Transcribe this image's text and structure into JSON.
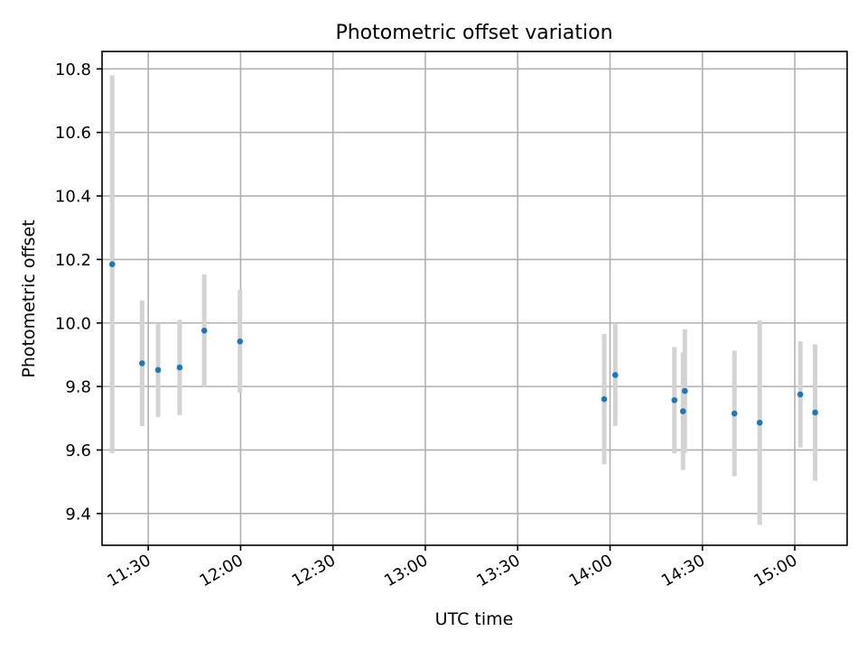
{
  "chart_data": {
    "type": "scatter",
    "title": "Photometric offset variation",
    "xlabel": "UTC time",
    "ylabel": "Photometric offset",
    "grid": true,
    "xlim_minutes": [
      675,
      917
    ],
    "ylim": [
      9.3,
      10.855
    ],
    "x_ticks": [
      {
        "minutes": 690,
        "label": "11:30"
      },
      {
        "minutes": 720,
        "label": "12:00"
      },
      {
        "minutes": 750,
        "label": "12:30"
      },
      {
        "minutes": 780,
        "label": "13:00"
      },
      {
        "minutes": 810,
        "label": "13:30"
      },
      {
        "minutes": 840,
        "label": "14:00"
      },
      {
        "minutes": 870,
        "label": "14:30"
      },
      {
        "minutes": 900,
        "label": "15:00"
      }
    ],
    "y_ticks": [
      9.4,
      9.6,
      9.8,
      10.0,
      10.2,
      10.4,
      10.6,
      10.8
    ],
    "colors": {
      "point": "#1f77b4",
      "errorbar": "#d3d3d3",
      "grid": "#b0b0b0"
    },
    "points": [
      {
        "time": "11:18.3",
        "minutes": 678.3,
        "y": 10.185,
        "err": 0.595
      },
      {
        "time": "11:28.0",
        "minutes": 688.0,
        "y": 9.873,
        "err": 0.198
      },
      {
        "time": "11:33.2",
        "minutes": 693.2,
        "y": 9.852,
        "err": 0.148
      },
      {
        "time": "11:40.2",
        "minutes": 700.2,
        "y": 9.86,
        "err": 0.15
      },
      {
        "time": "11:48.2",
        "minutes": 708.2,
        "y": 9.976,
        "err": 0.177
      },
      {
        "time": "11:59.8",
        "minutes": 719.8,
        "y": 9.942,
        "err": 0.162
      },
      {
        "time": "13:58.1",
        "minutes": 838.1,
        "y": 9.76,
        "err": 0.205
      },
      {
        "time": "14:01.7",
        "minutes": 841.7,
        "y": 9.836,
        "err": 0.16
      },
      {
        "time": "14:20.9",
        "minutes": 860.9,
        "y": 9.757,
        "err": 0.167
      },
      {
        "time": "14:23.7",
        "minutes": 863.7,
        "y": 9.722,
        "err": 0.185
      },
      {
        "time": "14:24.3",
        "minutes": 864.3,
        "y": 9.786,
        "err": 0.195
      },
      {
        "time": "14:40.4",
        "minutes": 880.4,
        "y": 9.715,
        "err": 0.198
      },
      {
        "time": "14:48.6",
        "minutes": 888.6,
        "y": 9.686,
        "err": 0.322
      },
      {
        "time": "15:01.8",
        "minutes": 901.8,
        "y": 9.775,
        "err": 0.167
      },
      {
        "time": "15:06.6",
        "minutes": 906.6,
        "y": 9.718,
        "err": 0.215
      }
    ]
  }
}
